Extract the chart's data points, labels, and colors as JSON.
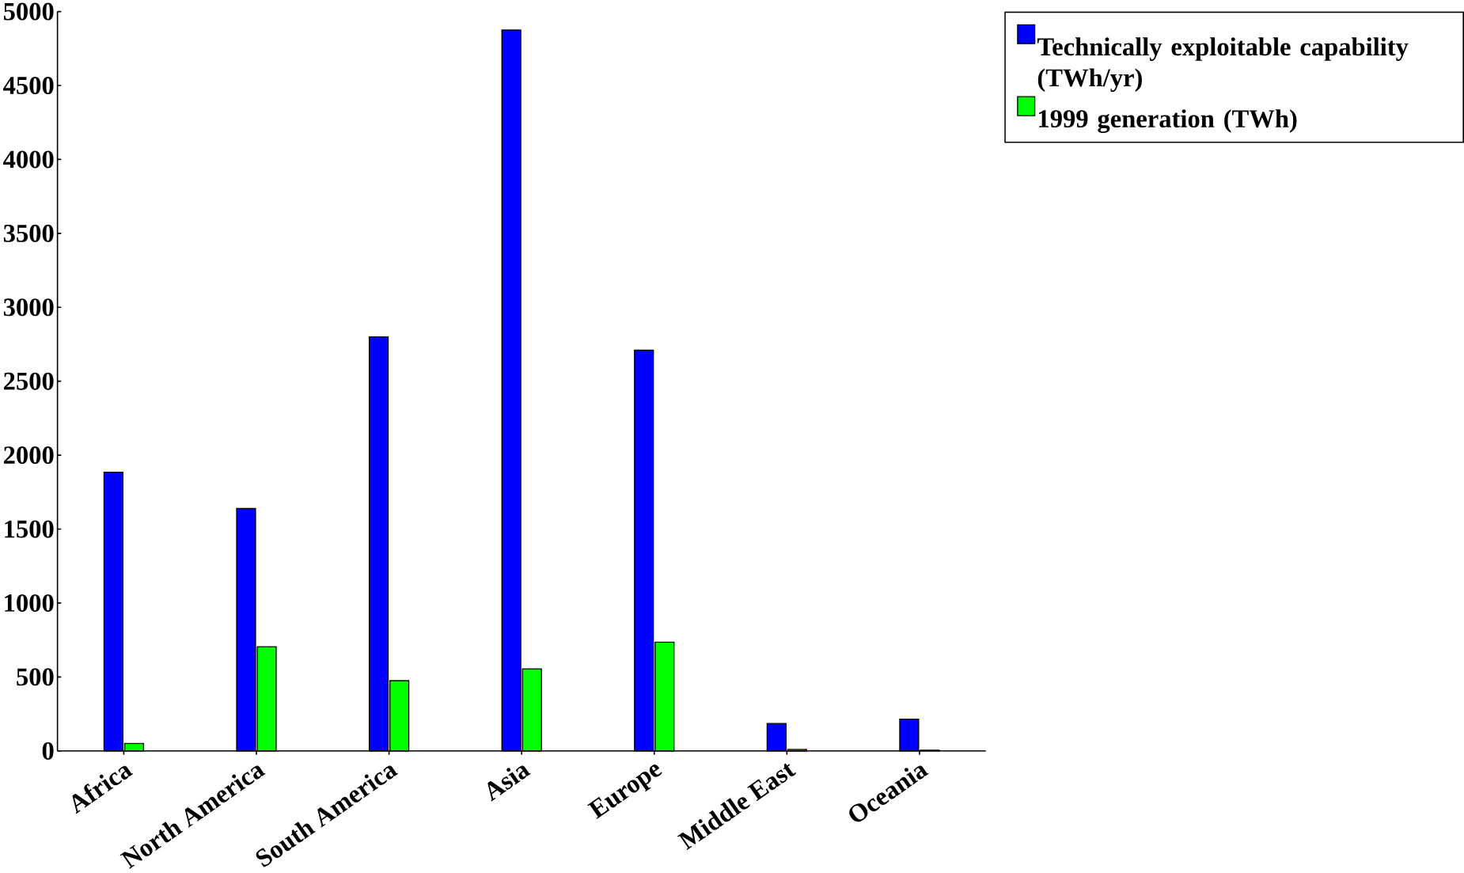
{
  "chart_data": {
    "type": "bar",
    "categories": [
      "Africa",
      "North America",
      "South America",
      "Asia",
      "Europe",
      "Middle East",
      "Oceania"
    ],
    "series": [
      {
        "name": "Technically exploitable capability (TWh/yr)",
        "color": "#0000ff",
        "values": [
          1885,
          1640,
          2800,
          4875,
          2710,
          185,
          215
        ]
      },
      {
        "name": "1999 generation (TWh)",
        "color": "#00ff00",
        "values": [
          50,
          705,
          475,
          555,
          735,
          10,
          5
        ]
      }
    ],
    "ylim": [
      0,
      5000
    ],
    "yticks": [
      0,
      500,
      1000,
      1500,
      2000,
      2500,
      3000,
      3500,
      4000,
      4500,
      5000
    ],
    "grid": false,
    "legend": "top right"
  }
}
